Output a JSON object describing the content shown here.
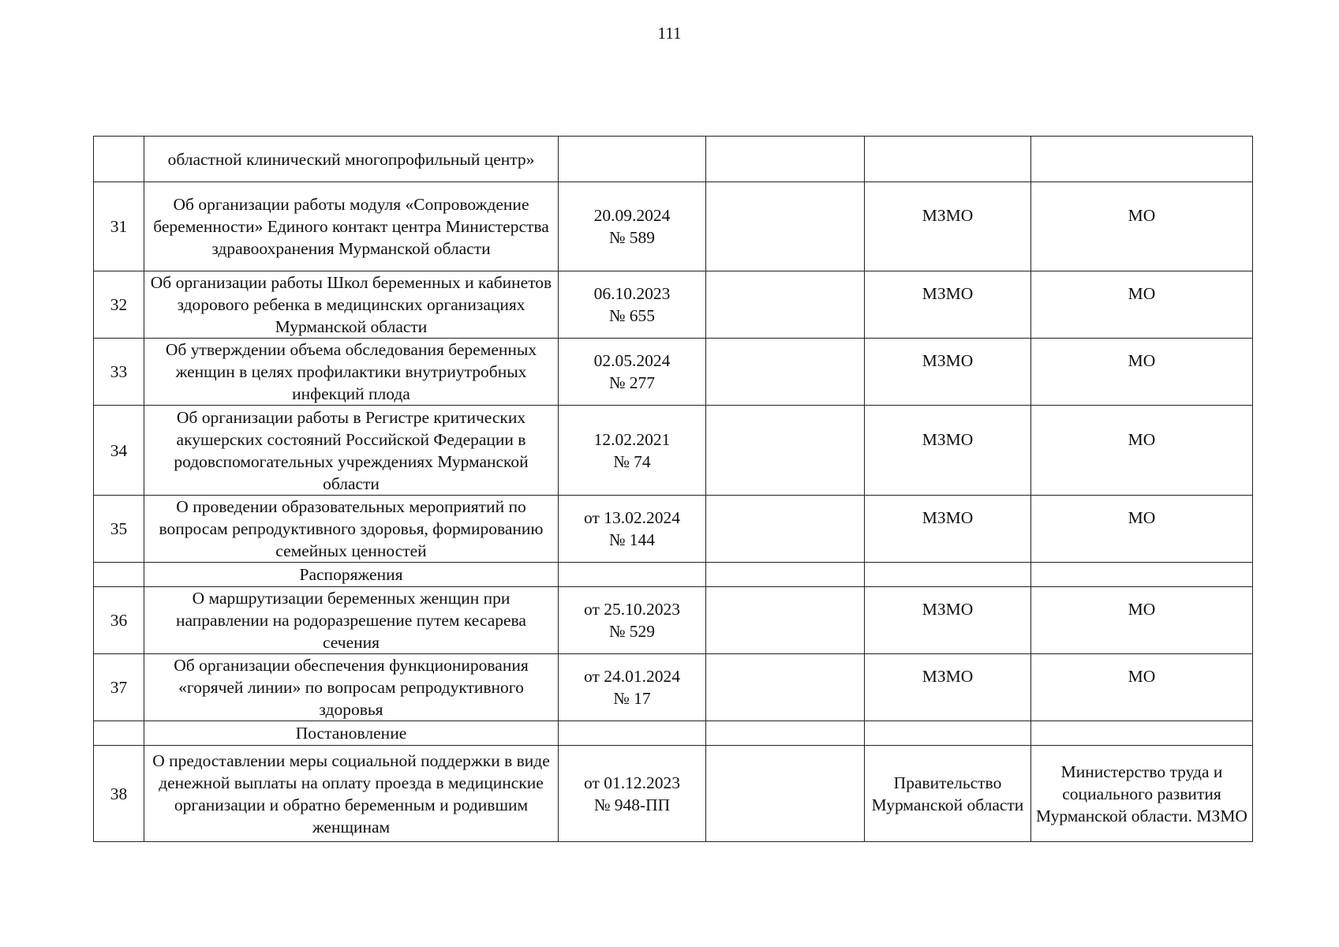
{
  "page_number": "111",
  "rows": [
    {
      "num": "",
      "title": "областной клинический многопрофильный центр»",
      "date": "",
      "col4": "",
      "issuer": "",
      "executor": ""
    },
    {
      "num": "31",
      "title": "Об организации работы модуля «Сопровождение беременности»  Единого контакт центра Министерства здравоохранения Мурманской области",
      "date": "20.09.2024",
      "docnum": "№ 589",
      "issuer": "МЗМО",
      "executor": "МО"
    },
    {
      "num": "32",
      "title": "Об организации работы Школ беременных и кабинетов здорового ребенка в медицинских организациях Мурманской области",
      "date": "06.10.2023",
      "docnum": "№ 655",
      "issuer": "МЗМО",
      "executor": "МО"
    },
    {
      "num": "33",
      "title": "Об утверждении объема обследования беременных женщин в целях профилактики внутриутробных инфекций плода",
      "date": "02.05.2024",
      "docnum": "№ 277",
      "issuer": "МЗМО",
      "executor": "МО"
    },
    {
      "num": "34",
      "title": "Об организации работы в Регистре критических акушерских состояний Российской Федерации в родовспомогательных учреждениях Мурманской области",
      "date": "12.02.2021",
      "docnum": "№ 74",
      "issuer": "МЗМО",
      "executor": "МО"
    },
    {
      "num": "35",
      "title": "О проведении образовательных мероприятий по вопросам репродуктивного здоровья, формированию семейных ценностей",
      "date": "от 13.02.2024",
      "docnum": "№ 144",
      "issuer": "МЗМО",
      "executor": "МО"
    },
    {
      "section": "Распоряжения"
    },
    {
      "num": "36",
      "title": "О маршрутизации беременных женщин при направлении на родоразрешение путем кесарева сечения",
      "date": "от 25.10.2023",
      "docnum": "№ 529",
      "issuer": "МЗМО",
      "executor": "МО"
    },
    {
      "num": "37",
      "title": "Об организации обеспечения функционирования «горячей линии» по вопросам репродуктивного здоровья",
      "date": "от 24.01.2024",
      "docnum": "№ 17",
      "issuer": "МЗМО",
      "executor": "МО"
    },
    {
      "section": "Постановление"
    },
    {
      "num": "38",
      "title": "О предоставлении меры социальной поддержки в виде денежной выплаты на оплату проезда в медицинские организации и обратно беременным и родившим женщинам",
      "date": "от 01.12.2023",
      "docnum": "№ 948-ПП",
      "issuer": "Правительство Мурманской области",
      "executor": "Министерство труда и социального развития Мурманской области. МЗМО"
    }
  ]
}
